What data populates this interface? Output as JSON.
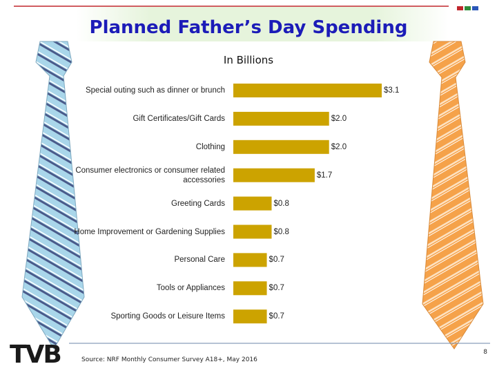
{
  "header": {
    "title": "Planned Father’s Day Spending"
  },
  "chart_data": {
    "type": "bar",
    "orientation": "horizontal",
    "subtitle": "In Billions",
    "categories": [
      "Special outing such as dinner or brunch",
      "Gift Certificates/Gift Cards",
      "Clothing",
      "Consumer electronics or consumer related accessories",
      "Greeting Cards",
      "Home Improvement or Gardening Supplies",
      "Personal Care",
      "Tools or Appliances",
      "Sporting Goods or Leisure Items"
    ],
    "values": [
      3.1,
      2.0,
      2.0,
      1.7,
      0.8,
      0.8,
      0.7,
      0.7,
      0.7
    ],
    "value_labels": [
      "$3.1",
      "$2.0",
      "$2.0",
      "$1.7",
      "$0.8",
      "$0.8",
      "$0.7",
      "$0.7",
      "$0.7"
    ],
    "color": "#cca300"
  },
  "footer": {
    "source": "Source: NRF Monthly Consumer Survey A18+, May 2016",
    "logo": "TVB",
    "page": "8"
  }
}
